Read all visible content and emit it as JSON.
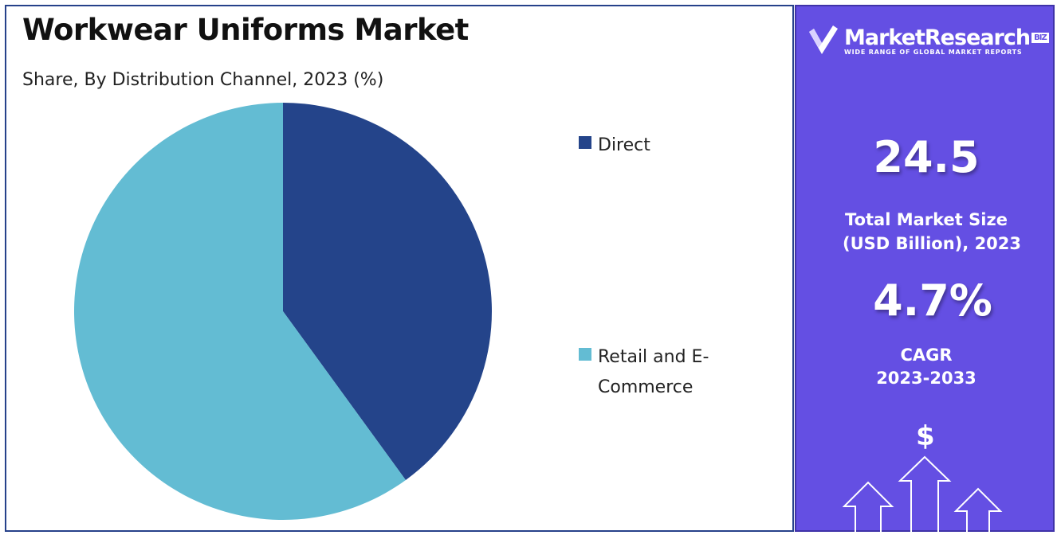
{
  "chart_data": {
    "type": "pie",
    "title": "Workwear Uniforms Market",
    "subtitle": "Share, By Distribution Channel, 2023 (%)",
    "series": [
      {
        "name": "Direct",
        "value": 40,
        "color": "#24448a"
      },
      {
        "name": "Retail and E-Commerce",
        "value": 60,
        "color": "#63bcd3"
      }
    ],
    "start_angle_deg": 0,
    "direction": "clockwise",
    "legend_position": "right"
  },
  "legend": {
    "items": [
      {
        "label": "Direct",
        "color": "#24448a"
      },
      {
        "label": "Retail and E-Commerce",
        "color": "#63bcd3"
      }
    ]
  },
  "side_panel": {
    "brand_name": "MarketResearch",
    "brand_badge": "BIZ",
    "brand_tagline": "WIDE RANGE OF GLOBAL MARKET REPORTS",
    "market_size_value": "24.5",
    "market_size_label_line1": "Total Market Size",
    "market_size_label_line2": "(USD Billion), 2023",
    "cagr_value": "4.7%",
    "cagr_label_line1": "CAGR",
    "cagr_label_line2": "2023-2033",
    "dollar_symbol": "$",
    "background_color": "#644fe3"
  }
}
